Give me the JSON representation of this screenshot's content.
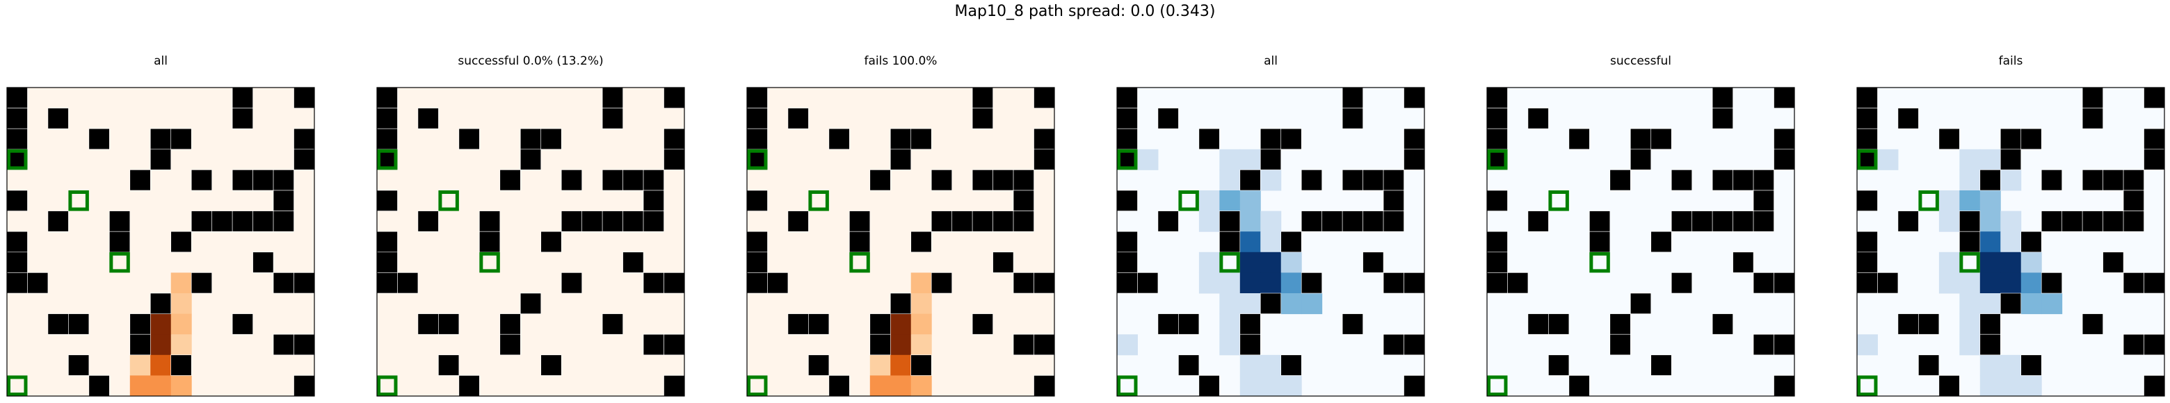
{
  "suptitle": "Map10_8 path spread: 0.0 (0.343)",
  "chart_data": {
    "type": "heatmap",
    "grid_size": [
      15,
      15
    ],
    "obstacle_color": "#000000",
    "target_color": "#008000",
    "obstacles": [
      [
        0,
        0
      ],
      [
        0,
        11
      ],
      [
        0,
        14
      ],
      [
        1,
        0
      ],
      [
        1,
        2
      ],
      [
        1,
        11
      ],
      [
        2,
        0
      ],
      [
        2,
        4
      ],
      [
        2,
        7
      ],
      [
        2,
        8
      ],
      [
        2,
        14
      ],
      [
        3,
        0
      ],
      [
        3,
        7
      ],
      [
        3,
        14
      ],
      [
        4,
        6
      ],
      [
        4,
        9
      ],
      [
        4,
        11
      ],
      [
        4,
        12
      ],
      [
        4,
        13
      ],
      [
        5,
        0
      ],
      [
        5,
        13
      ],
      [
        6,
        2
      ],
      [
        6,
        5
      ],
      [
        6,
        9
      ],
      [
        6,
        10
      ],
      [
        6,
        11
      ],
      [
        6,
        12
      ],
      [
        6,
        13
      ],
      [
        7,
        0
      ],
      [
        7,
        5
      ],
      [
        7,
        8
      ],
      [
        8,
        0
      ],
      [
        8,
        12
      ],
      [
        9,
        0
      ],
      [
        9,
        1
      ],
      [
        9,
        9
      ],
      [
        9,
        13
      ],
      [
        9,
        14
      ],
      [
        10,
        7
      ],
      [
        11,
        2
      ],
      [
        11,
        3
      ],
      [
        11,
        6
      ],
      [
        11,
        11
      ],
      [
        12,
        6
      ],
      [
        12,
        13
      ],
      [
        12,
        14
      ],
      [
        13,
        3
      ],
      [
        13,
        8
      ],
      [
        14,
        4
      ],
      [
        14,
        14
      ]
    ],
    "targets": [
      [
        3,
        0
      ],
      [
        5,
        3
      ],
      [
        8,
        5
      ],
      [
        14,
        0
      ]
    ],
    "heat_red": [
      [
        9,
        8,
        0.4
      ],
      [
        10,
        7,
        1
      ],
      [
        10,
        8,
        0.3
      ],
      [
        11,
        7,
        1
      ],
      [
        11,
        8,
        0.4
      ],
      [
        12,
        7,
        1
      ],
      [
        12,
        8,
        0.25
      ],
      [
        13,
        6,
        0.25
      ],
      [
        13,
        7,
        0.8
      ],
      [
        14,
        6,
        0.6
      ],
      [
        14,
        7,
        0.6
      ],
      [
        14,
        8,
        0.5
      ]
    ],
    "heat_blue": [
      [
        3,
        1,
        0.2
      ],
      [
        3,
        5,
        0.2
      ],
      [
        3,
        6,
        0.2
      ],
      [
        4,
        5,
        0.2
      ],
      [
        4,
        7,
        0.2
      ],
      [
        5,
        4,
        0.2
      ],
      [
        5,
        5,
        0.5
      ],
      [
        5,
        6,
        0.4
      ],
      [
        6,
        4,
        0.2
      ],
      [
        6,
        6,
        0.4
      ],
      [
        6,
        7,
        0.2
      ],
      [
        7,
        6,
        0.8
      ],
      [
        7,
        7,
        0.2
      ],
      [
        8,
        4,
        0.2
      ],
      [
        8,
        6,
        1
      ],
      [
        8,
        7,
        1
      ],
      [
        8,
        8,
        0.3
      ],
      [
        9,
        4,
        0.2
      ],
      [
        9,
        5,
        0.2
      ],
      [
        9,
        6,
        1
      ],
      [
        9,
        7,
        1
      ],
      [
        9,
        8,
        0.6
      ],
      [
        10,
        5,
        0.2
      ],
      [
        10,
        6,
        0.2
      ],
      [
        10,
        8,
        0.45
      ],
      [
        10,
        9,
        0.45
      ],
      [
        11,
        5,
        0.2
      ],
      [
        12,
        0,
        0.2
      ],
      [
        12,
        5,
        0.2
      ],
      [
        13,
        6,
        0.2
      ],
      [
        13,
        7,
        0.2
      ],
      [
        13,
        8,
        0.2
      ],
      [
        14,
        6,
        0.2
      ],
      [
        14,
        7,
        0.2
      ],
      [
        14,
        8,
        0.2
      ]
    ],
    "panels": [
      {
        "title": "all",
        "cmap": "Oranges_r",
        "heat": "red"
      },
      {
        "title": "successful 0.0% (13.2%)",
        "cmap": "Oranges_r",
        "heat": "none"
      },
      {
        "title": "fails 100.0%",
        "cmap": "Oranges_r",
        "heat": "red"
      },
      {
        "title": "all",
        "cmap": "Blues",
        "heat": "blue"
      },
      {
        "title": "successful",
        "cmap": "Blues",
        "heat": "none"
      },
      {
        "title": "fails",
        "cmap": "Blues",
        "heat": "blue"
      }
    ]
  }
}
